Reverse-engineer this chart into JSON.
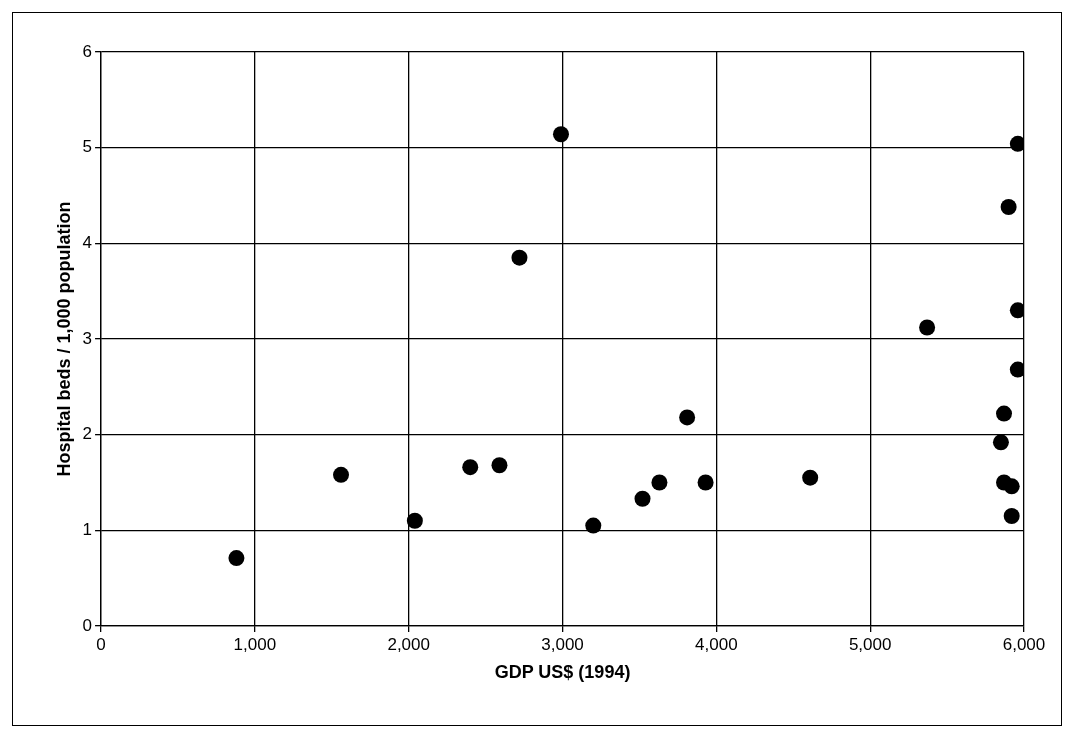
{
  "chart_data": {
    "type": "scatter",
    "xlabel": "GDP US$ (1994)",
    "ylabel": "Hospital beds / 1,000 population",
    "x": [
      880,
      1560,
      2040,
      2400,
      2590,
      2720,
      2990,
      3200,
      3520,
      3630,
      3810,
      3930,
      4610,
      5370,
      5960,
      5900,
      5960,
      5960,
      5870,
      5850,
      5870,
      5920,
      5920
    ],
    "series": [
      {
        "color": "#000000",
        "values": [
          0.71,
          1.58,
          1.1,
          1.66,
          1.68,
          3.85,
          5.14,
          1.05,
          1.33,
          1.5,
          2.18,
          1.5,
          1.55,
          3.12,
          5.04,
          4.38,
          3.3,
          2.68,
          2.22,
          1.92,
          1.5,
          1.46,
          1.15
        ]
      }
    ],
    "xlim": [
      0,
      6000
    ],
    "xticks": [
      {
        "value": 0,
        "label": "0"
      },
      {
        "value": 1000,
        "label": "1,000"
      },
      {
        "value": 2000,
        "label": "2,000"
      },
      {
        "value": 3000,
        "label": "3,000"
      },
      {
        "value": 4000,
        "label": "4,000"
      },
      {
        "value": 5000,
        "label": "5,000"
      },
      {
        "value": 6000,
        "label": "6,000"
      }
    ],
    "ylim": [
      0,
      6
    ],
    "yticks": [
      0,
      1,
      2,
      3,
      4,
      5,
      6
    ],
    "grid": true,
    "legend": false,
    "marker": "circle"
  }
}
